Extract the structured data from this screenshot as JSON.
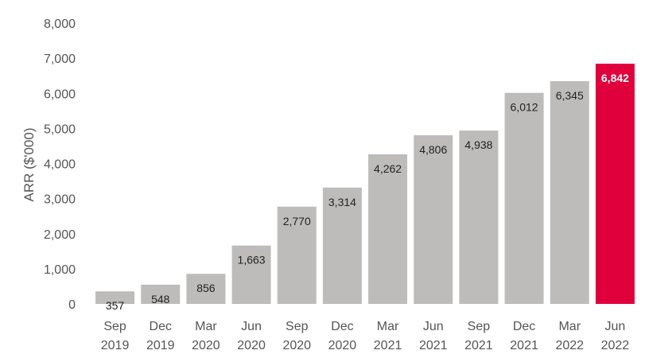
{
  "chart_data": {
    "type": "bar",
    "title": "",
    "ylabel": "ARR ($'000)",
    "xlabel": "",
    "ylim": [
      0,
      8000
    ],
    "yticks": [
      0,
      1000,
      2000,
      3000,
      4000,
      5000,
      6000,
      7000,
      8000
    ],
    "ytick_labels": [
      "0",
      "1,000",
      "2,000",
      "3,000",
      "4,000",
      "5,000",
      "6,000",
      "7,000",
      "8,000"
    ],
    "categories": [
      [
        "Sep",
        "2019"
      ],
      [
        "Dec",
        "2019"
      ],
      [
        "Mar",
        "2020"
      ],
      [
        "Jun",
        "2020"
      ],
      [
        "Sep",
        "2020"
      ],
      [
        "Dec",
        "2020"
      ],
      [
        "Mar",
        "2021"
      ],
      [
        "Jun",
        "2021"
      ],
      [
        "Sep",
        "2021"
      ],
      [
        "Dec",
        "2021"
      ],
      [
        "Mar",
        "2022"
      ],
      [
        "Jun",
        "2022"
      ]
    ],
    "values": [
      357,
      548,
      856,
      1663,
      2770,
      3314,
      4262,
      4806,
      4938,
      6012,
      6345,
      6842
    ],
    "value_labels": [
      "357",
      "548",
      "856",
      "1,663",
      "2,770",
      "3,314",
      "4,262",
      "4,806",
      "4,938",
      "6,012",
      "6,345",
      "6,842"
    ],
    "highlight_index": 11,
    "colors": {
      "bar": "#bdbcba",
      "highlight": "#e0003c"
    },
    "grid": false,
    "legend": "none"
  }
}
